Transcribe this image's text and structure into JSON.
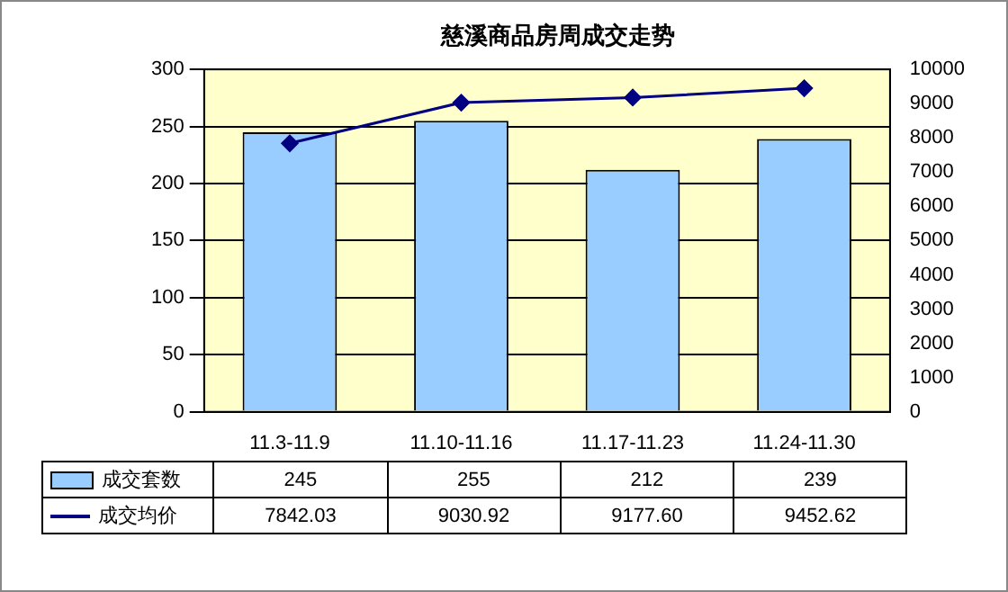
{
  "chart_data": {
    "type": "bar",
    "title": "慈溪商品房周成交走势",
    "categories": [
      "11.3-11.9",
      "11.10-11.16",
      "11.17-11.23",
      "11.24-11.30"
    ],
    "series": [
      {
        "name": "成交套数",
        "color": "#99ccff",
        "values": [
          245,
          255,
          212,
          239
        ],
        "value_labels": [
          "245",
          "255",
          "212",
          "239"
        ]
      },
      {
        "name": "成交均价",
        "type": "line",
        "axis": "y2",
        "color": "#000080",
        "marker": "diamond",
        "values": [
          7842.03,
          9030.92,
          9177.6,
          9452.62
        ],
        "value_labels": [
          "7842.03",
          "9030.92",
          "9177.60",
          "9452.62"
        ]
      }
    ],
    "ylim": [
      0,
      300
    ],
    "yticks": [
      0,
      50,
      100,
      150,
      200,
      250,
      300
    ],
    "y2lim": [
      0,
      10000
    ],
    "y2ticks": [
      0,
      1000,
      2000,
      3000,
      4000,
      5000,
      6000,
      7000,
      8000,
      9000,
      10000
    ],
    "grid": "y",
    "legend": "bottom"
  }
}
